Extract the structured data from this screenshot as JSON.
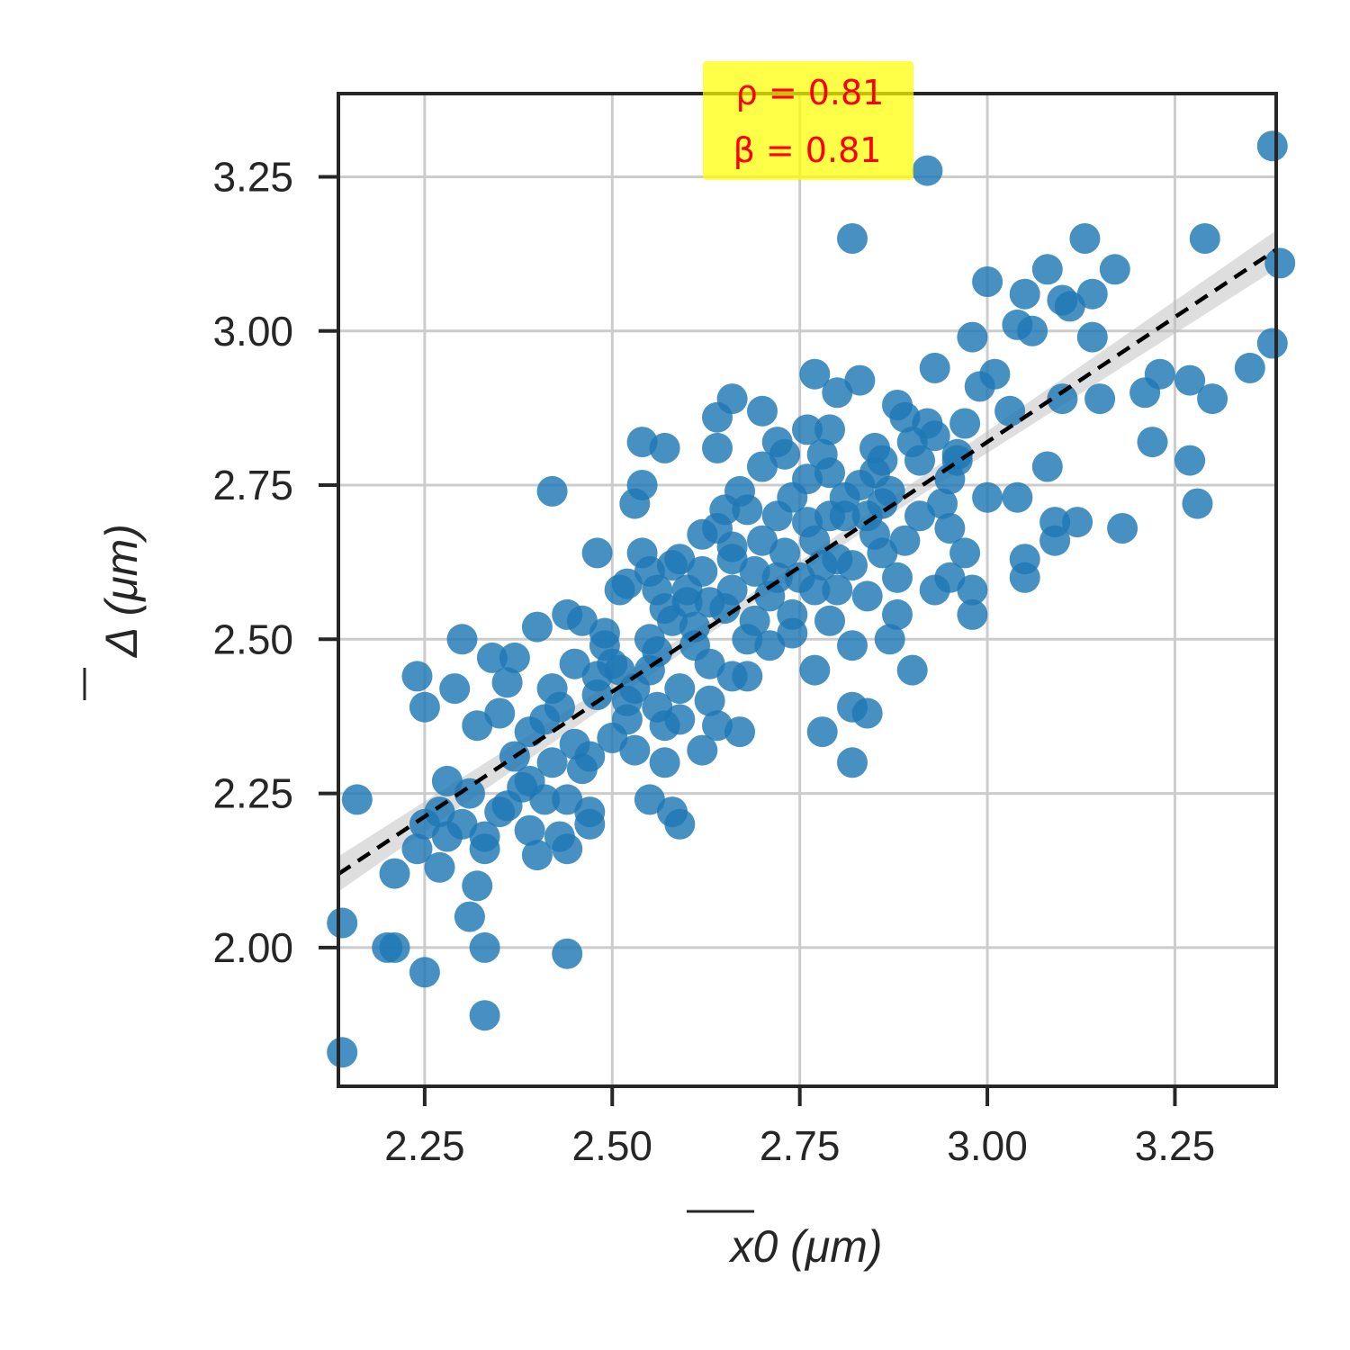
{
  "chart_data": {
    "type": "scatter",
    "xlabel": "x0 (μm)",
    "ylabel": "Δ (μm)",
    "xlim": [
      2.135,
      3.385
    ],
    "ylim": [
      1.775,
      3.385
    ],
    "xticks": [
      2.25,
      2.5,
      2.75,
      3.0,
      3.25
    ],
    "yticks": [
      2.0,
      2.25,
      2.5,
      2.75,
      3.0,
      3.25
    ],
    "xtick_labels": [
      "2.25",
      "2.50",
      "2.75",
      "3.00",
      "3.25"
    ],
    "ytick_labels": [
      "2.00",
      "2.25",
      "2.50",
      "2.75",
      "3.00",
      "3.25"
    ],
    "grid": true,
    "annotation": {
      "rho": "ρ = 0.81",
      "beta": "β = 0.81",
      "background": "#ffff00"
    },
    "fit_line": {
      "slope": 0.81,
      "intercept": 0.39
    },
    "colors": {
      "points": "#1f77b4",
      "fit": "#000000",
      "ci": "#bdbdbd",
      "frame": "#262626",
      "grid": "#cccccc"
    },
    "points": [
      [
        3.38,
        3.3
      ],
      [
        2.92,
        3.26
      ],
      [
        2.82,
        3.15
      ],
      [
        3.13,
        3.15
      ],
      [
        3.29,
        3.15
      ],
      [
        3.17,
        3.1
      ],
      [
        3.08,
        3.1
      ],
      [
        3.0,
        3.08
      ],
      [
        3.39,
        3.11
      ],
      [
        3.05,
        3.06
      ],
      [
        3.14,
        3.06
      ],
      [
        3.1,
        3.05
      ],
      [
        3.11,
        3.04
      ],
      [
        3.04,
        3.01
      ],
      [
        3.06,
        3.0
      ],
      [
        2.98,
        2.99
      ],
      [
        3.14,
        2.99
      ],
      [
        3.38,
        2.98
      ],
      [
        2.93,
        2.94
      ],
      [
        3.35,
        2.94
      ],
      [
        2.77,
        2.93
      ],
      [
        2.83,
        2.92
      ],
      [
        3.23,
        2.93
      ],
      [
        3.27,
        2.92
      ],
      [
        3.21,
        2.9
      ],
      [
        3.3,
        2.89
      ],
      [
        2.8,
        2.9
      ],
      [
        2.66,
        2.89
      ],
      [
        2.7,
        2.87
      ],
      [
        2.64,
        2.86
      ],
      [
        2.88,
        2.88
      ],
      [
        2.92,
        2.85
      ],
      [
        3.1,
        2.89
      ],
      [
        3.15,
        2.89
      ],
      [
        2.79,
        2.84
      ],
      [
        2.72,
        2.82
      ],
      [
        2.54,
        2.82
      ],
      [
        2.57,
        2.81
      ],
      [
        2.64,
        2.81
      ],
      [
        3.22,
        2.82
      ],
      [
        3.27,
        2.79
      ],
      [
        3.08,
        2.78
      ],
      [
        2.96,
        2.79
      ],
      [
        2.86,
        2.79
      ],
      [
        2.42,
        2.74
      ],
      [
        2.53,
        2.72
      ],
      [
        2.54,
        2.75
      ],
      [
        2.67,
        2.74
      ],
      [
        2.76,
        2.76
      ],
      [
        2.81,
        2.73
      ],
      [
        2.86,
        2.72
      ],
      [
        3.0,
        2.73
      ],
      [
        3.04,
        2.73
      ],
      [
        3.28,
        2.72
      ],
      [
        3.09,
        2.69
      ],
      [
        3.12,
        2.69
      ],
      [
        3.18,
        2.68
      ],
      [
        3.09,
        2.66
      ],
      [
        2.95,
        2.68
      ],
      [
        2.85,
        2.67
      ],
      [
        2.64,
        2.68
      ],
      [
        2.7,
        2.66
      ],
      [
        2.48,
        2.64
      ],
      [
        2.54,
        2.64
      ],
      [
        2.59,
        2.63
      ],
      [
        2.66,
        2.63
      ],
      [
        2.8,
        2.63
      ],
      [
        2.97,
        2.64
      ],
      [
        3.05,
        2.63
      ],
      [
        3.05,
        2.6
      ],
      [
        2.95,
        2.6
      ],
      [
        2.93,
        2.58
      ],
      [
        2.84,
        2.57
      ],
      [
        2.77,
        2.58
      ],
      [
        2.66,
        2.58
      ],
      [
        2.52,
        2.59
      ],
      [
        2.56,
        2.58
      ],
      [
        2.6,
        2.56
      ],
      [
        2.63,
        2.56
      ],
      [
        2.98,
        2.58
      ],
      [
        2.98,
        2.54
      ],
      [
        2.88,
        2.54
      ],
      [
        2.79,
        2.53
      ],
      [
        2.74,
        2.51
      ],
      [
        2.68,
        2.5
      ],
      [
        2.46,
        2.53
      ],
      [
        2.44,
        2.54
      ],
      [
        2.4,
        2.52
      ],
      [
        2.49,
        2.51
      ],
      [
        2.3,
        2.5
      ],
      [
        2.34,
        2.47
      ],
      [
        2.37,
        2.47
      ],
      [
        2.5,
        2.46
      ],
      [
        2.56,
        2.48
      ],
      [
        2.82,
        2.49
      ],
      [
        2.87,
        2.5
      ],
      [
        2.9,
        2.45
      ],
      [
        2.77,
        2.45
      ],
      [
        2.66,
        2.44
      ],
      [
        2.59,
        2.42
      ],
      [
        2.48,
        2.44
      ],
      [
        2.42,
        2.42
      ],
      [
        2.36,
        2.43
      ],
      [
        2.29,
        2.42
      ],
      [
        2.24,
        2.44
      ],
      [
        2.25,
        2.39
      ],
      [
        2.35,
        2.38
      ],
      [
        2.43,
        2.39
      ],
      [
        2.52,
        2.37
      ],
      [
        2.57,
        2.36
      ],
      [
        2.64,
        2.36
      ],
      [
        2.67,
        2.35
      ],
      [
        2.78,
        2.35
      ],
      [
        2.82,
        2.39
      ],
      [
        2.84,
        2.38
      ],
      [
        2.32,
        2.36
      ],
      [
        2.39,
        2.35
      ],
      [
        2.45,
        2.33
      ],
      [
        2.53,
        2.32
      ],
      [
        2.57,
        2.3
      ],
      [
        2.62,
        2.32
      ],
      [
        2.82,
        2.3
      ],
      [
        2.47,
        2.31
      ],
      [
        2.39,
        2.27
      ],
      [
        2.41,
        2.24
      ],
      [
        2.44,
        2.24
      ],
      [
        2.55,
        2.24
      ],
      [
        2.58,
        2.22
      ],
      [
        2.47,
        2.22
      ],
      [
        2.36,
        2.23
      ],
      [
        2.31,
        2.25
      ],
      [
        2.28,
        2.27
      ],
      [
        2.16,
        2.24
      ],
      [
        2.25,
        2.2
      ],
      [
        2.28,
        2.18
      ],
      [
        2.33,
        2.18
      ],
      [
        2.39,
        2.19
      ],
      [
        2.43,
        2.18
      ],
      [
        2.47,
        2.2
      ],
      [
        2.59,
        2.2
      ],
      [
        2.24,
        2.16
      ],
      [
        2.27,
        2.13
      ],
      [
        2.33,
        2.16
      ],
      [
        2.4,
        2.15
      ],
      [
        2.44,
        2.16
      ],
      [
        2.21,
        2.12
      ],
      [
        2.32,
        2.1
      ],
      [
        2.31,
        2.05
      ],
      [
        2.2,
        2.0
      ],
      [
        2.21,
        2.0
      ],
      [
        2.33,
        2.0
      ],
      [
        2.44,
        1.99
      ],
      [
        2.25,
        1.96
      ],
      [
        2.14,
        2.04
      ],
      [
        2.33,
        1.89
      ],
      [
        2.14,
        1.83
      ],
      [
        2.48,
        2.41
      ],
      [
        2.51,
        2.45
      ],
      [
        2.55,
        2.5
      ],
      [
        2.58,
        2.53
      ],
      [
        2.61,
        2.49
      ],
      [
        2.63,
        2.46
      ],
      [
        2.65,
        2.55
      ],
      [
        2.69,
        2.61
      ],
      [
        2.71,
        2.57
      ],
      [
        2.72,
        2.7
      ],
      [
        2.73,
        2.64
      ],
      [
        2.74,
        2.73
      ],
      [
        2.76,
        2.69
      ],
      [
        2.78,
        2.62
      ],
      [
        2.79,
        2.77
      ],
      [
        2.81,
        2.7
      ],
      [
        2.83,
        2.75
      ],
      [
        2.85,
        2.81
      ],
      [
        2.87,
        2.74
      ],
      [
        2.89,
        2.86
      ],
      [
        2.91,
        2.79
      ],
      [
        2.93,
        2.83
      ],
      [
        2.95,
        2.76
      ],
      [
        2.97,
        2.85
      ],
      [
        2.99,
        2.91
      ],
      [
        3.01,
        2.93
      ],
      [
        3.03,
        2.87
      ],
      [
        2.7,
        2.78
      ],
      [
        2.68,
        2.71
      ],
      [
        2.66,
        2.65
      ],
      [
        2.62,
        2.61
      ],
      [
        2.6,
        2.58
      ],
      [
        2.57,
        2.55
      ],
      [
        2.55,
        2.45
      ],
      [
        2.52,
        2.4
      ],
      [
        2.5,
        2.34
      ],
      [
        2.46,
        2.29
      ],
      [
        2.42,
        2.3
      ],
      [
        2.38,
        2.26
      ],
      [
        2.35,
        2.22
      ],
      [
        2.3,
        2.2
      ],
      [
        2.27,
        2.22
      ],
      [
        2.75,
        2.6
      ],
      [
        2.77,
        2.66
      ],
      [
        2.8,
        2.58
      ],
      [
        2.82,
        2.62
      ],
      [
        2.86,
        2.64
      ],
      [
        2.89,
        2.66
      ],
      [
        2.91,
        2.7
      ],
      [
        2.94,
        2.72
      ],
      [
        2.96,
        2.8
      ],
      [
        2.73,
        2.8
      ],
      [
        2.76,
        2.84
      ],
      [
        2.78,
        2.8
      ],
      [
        2.84,
        2.7
      ],
      [
        2.88,
        2.6
      ],
      [
        2.74,
        2.54
      ],
      [
        2.71,
        2.49
      ],
      [
        2.68,
        2.44
      ],
      [
        2.63,
        2.4
      ],
      [
        2.59,
        2.37
      ],
      [
        2.56,
        2.39
      ],
      [
        2.53,
        2.42
      ],
      [
        2.61,
        2.52
      ],
      [
        2.69,
        2.53
      ],
      [
        2.72,
        2.6
      ],
      [
        2.79,
        2.7
      ],
      [
        2.85,
        2.77
      ],
      [
        2.9,
        2.82
      ],
      [
        2.65,
        2.71
      ],
      [
        2.62,
        2.67
      ],
      [
        2.58,
        2.62
      ],
      [
        2.55,
        2.61
      ],
      [
        2.51,
        2.58
      ],
      [
        2.49,
        2.49
      ],
      [
        2.45,
        2.46
      ],
      [
        2.41,
        2.37
      ],
      [
        2.37,
        2.31
      ]
    ]
  }
}
